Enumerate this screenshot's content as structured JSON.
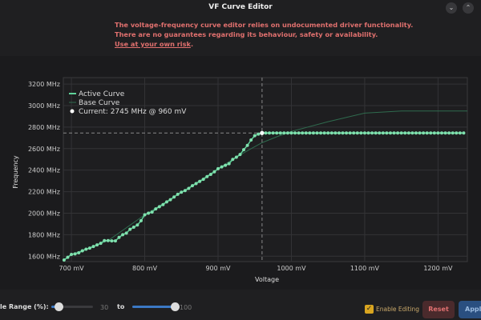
{
  "window": {
    "title": "VF Curve Editor"
  },
  "warning": {
    "line1": "The voltage-frequency curve editor relies on undocumented driver functionality.",
    "line2": "There are no guarantees regarding its behaviour, safety or availability.",
    "link": "Use at your own risk",
    "link_suffix": "."
  },
  "chart_data": {
    "type": "line",
    "xlabel": "Voltage",
    "ylabel": "Frequency",
    "xlim": [
      689,
      1240
    ],
    "ylim": [
      1550,
      3260
    ],
    "x_ticks": [
      "700 mV",
      "800 mV",
      "900 mV",
      "1000 mV",
      "1100 mV",
      "1200 mV"
    ],
    "x_tick_values": [
      700,
      800,
      900,
      1000,
      1100,
      1200
    ],
    "y_ticks": [
      "1600 MHz",
      "1800 MHz",
      "2000 MHz",
      "2200 MHz",
      "2400 MHz",
      "2600 MHz",
      "2800 MHz",
      "3000 MHz",
      "3200 MHz"
    ],
    "y_tick_values": [
      1600,
      1800,
      2000,
      2200,
      2400,
      2600,
      2800,
      3000,
      3200
    ],
    "grid": true,
    "legend": "top-left",
    "series": [
      {
        "name": "Active Curve",
        "color": "#5fd39a",
        "markers": true,
        "x": [
          690,
          695,
          700,
          705,
          710,
          715,
          720,
          725,
          730,
          735,
          740,
          745,
          750,
          755,
          760,
          765,
          770,
          775,
          780,
          785,
          790,
          795,
          800,
          805,
          810,
          815,
          820,
          825,
          830,
          835,
          840,
          845,
          850,
          855,
          860,
          865,
          870,
          875,
          880,
          885,
          890,
          895,
          900,
          905,
          910,
          915,
          920,
          925,
          930,
          935,
          940,
          945,
          950,
          955,
          960,
          965,
          970,
          975,
          980,
          985,
          990,
          995,
          1000,
          1005,
          1010,
          1015,
          1020,
          1025,
          1030,
          1035,
          1040,
          1045,
          1050,
          1055,
          1060,
          1065,
          1070,
          1075,
          1080,
          1085,
          1090,
          1095,
          1100,
          1105,
          1110,
          1115,
          1120,
          1125,
          1130,
          1135,
          1140,
          1145,
          1150,
          1155,
          1160,
          1165,
          1170,
          1175,
          1180,
          1185,
          1190,
          1195,
          1200,
          1205,
          1210,
          1215,
          1220,
          1225,
          1230,
          1235
        ],
        "y": [
          1565,
          1590,
          1617,
          1622,
          1632,
          1650,
          1665,
          1675,
          1690,
          1705,
          1720,
          1745,
          1745,
          1742,
          1742,
          1775,
          1800,
          1815,
          1850,
          1870,
          1890,
          1930,
          1985,
          2000,
          2010,
          2040,
          2060,
          2080,
          2105,
          2125,
          2150,
          2175,
          2195,
          2210,
          2230,
          2255,
          2275,
          2295,
          2315,
          2340,
          2360,
          2385,
          2413,
          2430,
          2445,
          2460,
          2500,
          2520,
          2545,
          2590,
          2630,
          2680,
          2720,
          2735,
          2745,
          2745,
          2745,
          2745,
          2745,
          2745,
          2745,
          2745,
          2745,
          2745,
          2745,
          2745,
          2745,
          2745,
          2745,
          2745,
          2745,
          2745,
          2745,
          2745,
          2745,
          2745,
          2745,
          2745,
          2745,
          2745,
          2745,
          2745,
          2745,
          2745,
          2745,
          2745,
          2745,
          2745,
          2745,
          2745,
          2745,
          2745,
          2745,
          2745,
          2745,
          2745,
          2745,
          2745,
          2745,
          2745,
          2745,
          2745,
          2745,
          2745,
          2745,
          2745,
          2745,
          2745,
          2745,
          2745
        ]
      },
      {
        "name": "Base Curve",
        "color": "#2f6b4e",
        "markers": false,
        "x": [
          690,
          700,
          750,
          800,
          850,
          900,
          920,
          940,
          960,
          980,
          1000,
          1050,
          1100,
          1150,
          1240
        ],
        "y": [
          1565,
          1617,
          1745,
          1985,
          2195,
          2413,
          2500,
          2580,
          2655,
          2710,
          2760,
          2850,
          2930,
          2950,
          2950
        ]
      }
    ],
    "current": {
      "label": "Current: 2745 MHz @ 960 mV",
      "x": 960,
      "y": 2745
    }
  },
  "bottom": {
    "range_label": "Visible Range (%):",
    "min_value": "30",
    "to_label": "to",
    "max_value": "100",
    "min_percent": 30,
    "max_percent": 100,
    "enable_editing_label": "Enable Editing",
    "enable_editing": true,
    "reset_label": "Reset",
    "apply_label": "Apply"
  }
}
